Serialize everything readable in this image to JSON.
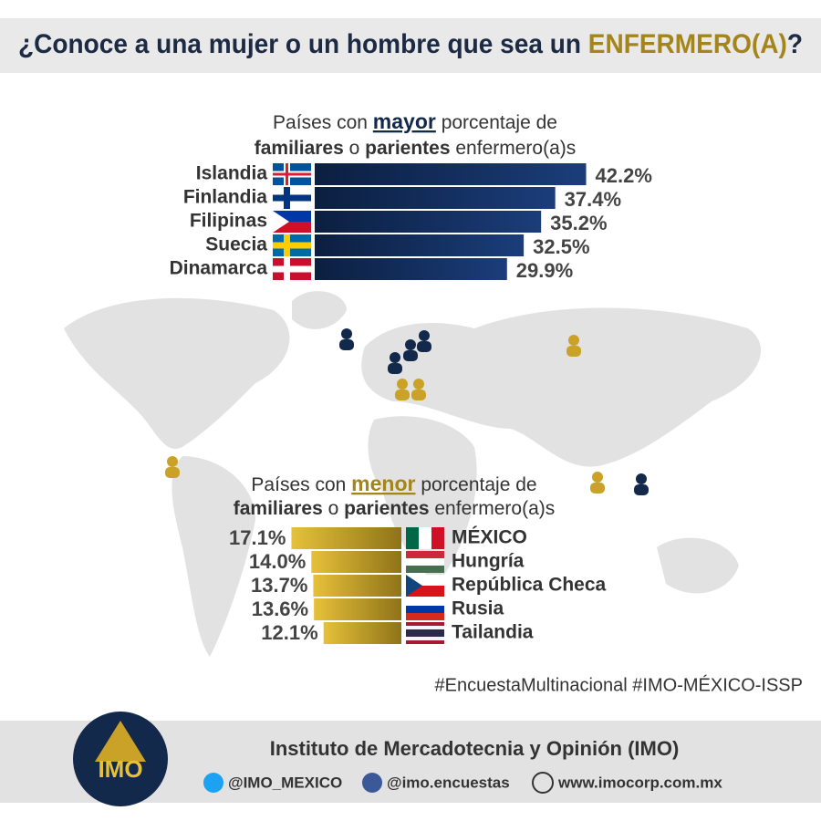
{
  "header": {
    "title": "¿Conoce a una mujer o un hombre que sea un ",
    "highlight": "ENFERMERO(A)",
    "end": "?"
  },
  "chart_data": [
    {
      "type": "bar",
      "direction": "right",
      "title": [
        "Países con",
        "mayor",
        "porcentaje de",
        "familiares",
        "o",
        "parientes",
        "enfermero(a)s"
      ],
      "categories": [
        "Islandia",
        "Finlandia",
        "Filipinas",
        "Suecia",
        "Dinamarca"
      ],
      "values": [
        42.2,
        37.4,
        35.2,
        32.5,
        29.9
      ],
      "value_labels": [
        "42.2%",
        "37.4%",
        "35.2%",
        "32.5%",
        "29.9%"
      ],
      "color": "#1b3d7a"
    },
    {
      "type": "bar",
      "direction": "left",
      "title": [
        "Países con",
        "menor",
        "porcentaje de",
        "familiares",
        "o",
        "parientes",
        "enfermero(a)s"
      ],
      "categories": [
        "MÉXICO",
        "Hungría",
        "República Checa",
        "Rusia",
        "Tailandia"
      ],
      "values": [
        17.1,
        14.0,
        13.7,
        13.6,
        12.1
      ],
      "value_labels": [
        "17.1%",
        "14.0%",
        "13.7%",
        "13.6%",
        "12.1%"
      ],
      "color": "#e6c13a"
    }
  ],
  "hashtags": "#EncuestaMultinacional #IMO-MÉXICO-ISSP",
  "footer": {
    "logo": "IMO",
    "institute": "Instituto de Mercadotecnia y Opinión (IMO)",
    "twitter": "@IMO_MEXICO",
    "facebook": "@imo.encuestas",
    "website": "www.imocorp.com.mx"
  }
}
